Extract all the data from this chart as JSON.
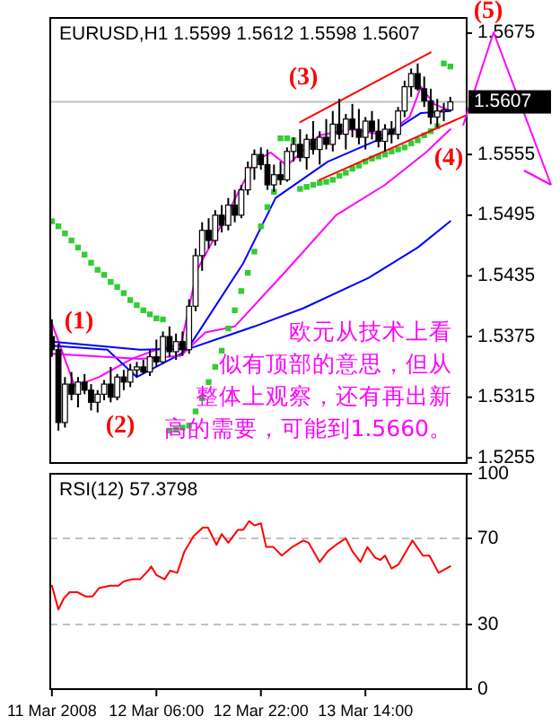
{
  "chart_data": [
    {
      "type": "candlestick",
      "title": "EURUSD,H1 1.5599 1.5612 1.5598 1.5607",
      "x": [
        "2008-03-11T14:00",
        "2008-03-11T15:00",
        "2008-03-11T16:00",
        "2008-03-11T17:00",
        "2008-03-11T18:00",
        "2008-03-11T19:00",
        "2008-03-11T20:00",
        "2008-03-11T21:00",
        "2008-03-11T22:00",
        "2008-03-11T23:00",
        "2008-03-12T00:00",
        "2008-03-12T01:00",
        "2008-03-12T02:00",
        "2008-03-12T03:00",
        "2008-03-12T04:00",
        "2008-03-12T05:00",
        "2008-03-12T06:00",
        "2008-03-12T07:00",
        "2008-03-12T08:00",
        "2008-03-12T09:00",
        "2008-03-12T10:00",
        "2008-03-12T11:00",
        "2008-03-12T12:00",
        "2008-03-12T13:00",
        "2008-03-12T14:00",
        "2008-03-12T15:00",
        "2008-03-12T16:00",
        "2008-03-12T17:00",
        "2008-03-12T18:00",
        "2008-03-12T19:00",
        "2008-03-12T20:00",
        "2008-03-12T21:00",
        "2008-03-12T22:00",
        "2008-03-12T23:00",
        "2008-03-13T00:00",
        "2008-03-13T01:00",
        "2008-03-13T02:00",
        "2008-03-13T03:00",
        "2008-03-13T04:00",
        "2008-03-13T05:00",
        "2008-03-13T06:00",
        "2008-03-13T07:00",
        "2008-03-13T08:00",
        "2008-03-13T09:00",
        "2008-03-13T10:00",
        "2008-03-13T11:00",
        "2008-03-13T12:00",
        "2008-03-13T13:00",
        "2008-03-13T14:00",
        "2008-03-13T15:00",
        "2008-03-13T16:00",
        "2008-03-13T17:00",
        "2008-03-13T18:00",
        "2008-03-13T19:00",
        "2008-03-13T20:00",
        "2008-03-13T21:00",
        "2008-03-13T22:00",
        "2008-03-13T23:00",
        "2008-03-14T00:00",
        "2008-03-14T01:00",
        "2008-03-14T02:00",
        "2008-03-14T03:00"
      ],
      "ohlc": [
        [
          1.5375,
          1.5392,
          1.5355,
          1.5362
        ],
        [
          1.5362,
          1.5368,
          1.5282,
          1.529
        ],
        [
          1.529,
          1.5335,
          1.5285,
          1.5328
        ],
        [
          1.5328,
          1.534,
          1.5312,
          1.5318
        ],
        [
          1.5318,
          1.5335,
          1.5305,
          1.533
        ],
        [
          1.533,
          1.5338,
          1.5318,
          1.5322
        ],
        [
          1.5322,
          1.5328,
          1.5302,
          1.531
        ],
        [
          1.531,
          1.5322,
          1.53,
          1.5318
        ],
        [
          1.5318,
          1.5332,
          1.5312,
          1.5328
        ],
        [
          1.5328,
          1.5345,
          1.531,
          1.5315
        ],
        [
          1.5315,
          1.5338,
          1.5312,
          1.5335
        ],
        [
          1.5335,
          1.5342,
          1.5322,
          1.533
        ],
        [
          1.533,
          1.5348,
          1.5325,
          1.5342
        ],
        [
          1.5342,
          1.535,
          1.5335,
          1.5345
        ],
        [
          1.5345,
          1.5352,
          1.5338,
          1.534
        ],
        [
          1.534,
          1.5362,
          1.5336,
          1.5355
        ],
        [
          1.5355,
          1.5372,
          1.5345,
          1.535
        ],
        [
          1.535,
          1.538,
          1.5348,
          1.5375
        ],
        [
          1.5375,
          1.5385,
          1.5355,
          1.536
        ],
        [
          1.536,
          1.5378,
          1.5352,
          1.537
        ],
        [
          1.537,
          1.538,
          1.5356,
          1.5362
        ],
        [
          1.5362,
          1.5412,
          1.5358,
          1.5405
        ],
        [
          1.5405,
          1.5462,
          1.54,
          1.5455
        ],
        [
          1.5455,
          1.5488,
          1.544,
          1.548
        ],
        [
          1.548,
          1.5492,
          1.5462,
          1.547
        ],
        [
          1.547,
          1.55,
          1.5465,
          1.5495
        ],
        [
          1.5495,
          1.5505,
          1.5478,
          1.5485
        ],
        [
          1.5485,
          1.5512,
          1.548,
          1.5505
        ],
        [
          1.5505,
          1.552,
          1.5488,
          1.5495
        ],
        [
          1.5495,
          1.5525,
          1.5492,
          1.552
        ],
        [
          1.552,
          1.5548,
          1.5515,
          1.5542
        ],
        [
          1.5542,
          1.556,
          1.553,
          1.5555
        ],
        [
          1.5555,
          1.5562,
          1.554,
          1.5545
        ],
        [
          1.5545,
          1.556,
          1.552,
          1.5525
        ],
        [
          1.5525,
          1.5545,
          1.5518,
          1.5535
        ],
        [
          1.5535,
          1.5548,
          1.5525,
          1.553
        ],
        [
          1.553,
          1.5562,
          1.5528,
          1.5558
        ],
        [
          1.5558,
          1.5572,
          1.5548,
          1.5565
        ],
        [
          1.5565,
          1.558,
          1.5548,
          1.5552
        ],
        [
          1.5552,
          1.5575,
          1.554,
          1.557
        ],
        [
          1.557,
          1.5588,
          1.5555,
          1.556
        ],
        [
          1.556,
          1.5578,
          1.5545,
          1.5572
        ],
        [
          1.5572,
          1.559,
          1.556,
          1.5565
        ],
        [
          1.5565,
          1.5598,
          1.5558,
          1.5585
        ],
        [
          1.5585,
          1.561,
          1.557,
          1.5575
        ],
        [
          1.5575,
          1.5595,
          1.556,
          1.559
        ],
        [
          1.559,
          1.5605,
          1.5572,
          1.558
        ],
        [
          1.558,
          1.56,
          1.5565,
          1.5572
        ],
        [
          1.5572,
          1.5592,
          1.556,
          1.5588
        ],
        [
          1.5588,
          1.5598,
          1.557,
          1.5578
        ],
        [
          1.5578,
          1.559,
          1.5562,
          1.5568
        ],
        [
          1.5568,
          1.5585,
          1.5558,
          1.558
        ],
        [
          1.558,
          1.5588,
          1.5566,
          1.5575
        ],
        [
          1.5575,
          1.5602,
          1.557,
          1.5598
        ],
        [
          1.5598,
          1.5628,
          1.5592,
          1.5622
        ],
        [
          1.5622,
          1.564,
          1.5612,
          1.5635
        ],
        [
          1.5635,
          1.5645,
          1.5618,
          1.562
        ],
        [
          1.562,
          1.5632,
          1.5602,
          1.5608
        ],
        [
          1.5608,
          1.562,
          1.5585,
          1.5592
        ],
        [
          1.5592,
          1.561,
          1.5582,
          1.5598
        ],
        [
          1.5598,
          1.5606,
          1.5588,
          1.5599
        ],
        [
          1.5599,
          1.5612,
          1.5598,
          1.5607
        ]
      ],
      "series": [
        {
          "type": "line",
          "color": "#ff00ff",
          "x": [
            "2008-03-11T14:00",
            "2008-03-11T17:30",
            "2008-03-11T21:15",
            "2008-03-12T02:15",
            "2008-03-12T06:00",
            "2008-03-12T09:45",
            "2008-03-12T12:15",
            "2008-03-12T16:00",
            "2008-03-12T21:00",
            "2008-03-12T23:30",
            "2008-03-13T02:00",
            "2008-03-13T07:00",
            "2008-03-13T12:00",
            "2008-03-13T17:00",
            "2008-03-13T20:45",
            "2008-03-13T22:30",
            "2008-03-14T00:30",
            "2008-03-14T03:00"
          ],
          "values": [
            1.5388,
            1.5326,
            1.5335,
            1.5353,
            1.5362,
            1.5367,
            1.5441,
            1.5486,
            1.5548,
            1.5557,
            1.5544,
            1.5574,
            1.558,
            1.5574,
            1.5592,
            1.5622,
            1.5605,
            1.5598
          ]
        },
        {
          "type": "line",
          "color": "#0000ff",
          "x": [
            "2008-03-11T14:00",
            "2008-03-11T22:30",
            "2008-03-12T03:00",
            "2008-03-12T09:45",
            "2008-03-12T11:00",
            "2008-03-12T19:15",
            "2008-03-13T00:15",
            "2008-03-13T08:15",
            "2008-03-13T16:30",
            "2008-03-13T22:30",
            "2008-03-14T03:00"
          ],
          "values": [
            1.5366,
            1.5362,
            1.5335,
            1.5358,
            1.5365,
            1.5447,
            1.5512,
            1.5548,
            1.5571,
            1.5596,
            1.5598
          ]
        },
        {
          "type": "line",
          "color": "#ff00ff",
          "x": [
            "2008-03-11T14:00",
            "2008-03-12T03:30",
            "2008-03-12T09:45",
            "2008-03-12T13:30",
            "2008-03-12T18:00",
            "2008-03-13T02:00",
            "2008-03-13T09:30",
            "2008-03-13T17:00",
            "2008-03-13T23:15",
            "2008-03-14T03:00"
          ],
          "values": [
            1.5358,
            1.5353,
            1.5356,
            1.5379,
            1.5385,
            1.5441,
            1.5495,
            1.5525,
            1.5557,
            1.558
          ]
        },
        {
          "type": "line",
          "color": "#0000ff",
          "x": [
            "2008-03-11T14:00",
            "2008-03-12T03:30",
            "2008-03-12T11:00",
            "2008-03-12T21:00",
            "2008-03-13T04:30",
            "2008-03-13T14:30",
            "2008-03-13T22:00",
            "2008-03-14T03:00"
          ],
          "values": [
            1.537,
            1.5362,
            1.5363,
            1.5385,
            1.5403,
            1.5433,
            1.5463,
            1.5489
          ]
        },
        {
          "type": "scatter",
          "color": "#33cc33",
          "marker": "square",
          "values": [
            1.5489,
            1.5484,
            1.5477,
            1.547,
            1.5463,
            1.5456,
            1.5448,
            1.5441,
            1.5436,
            1.5429,
            1.5424,
            1.5418,
            1.5411,
            1.5406,
            1.5401,
            1.5397,
            1.5393,
            1.5392,
            1.5282,
            1.5283,
            1.5285,
            1.5287,
            1.5301,
            1.5314,
            1.533,
            1.5345,
            1.5361,
            1.5383,
            1.5401,
            1.542,
            1.5438,
            1.5459,
            1.5484,
            1.5503,
            1.5518,
            1.5571,
            1.5571,
            1.5569,
            1.5521,
            1.5523,
            1.5525,
            1.5527,
            1.5528,
            1.553,
            1.5534,
            1.5537,
            1.5541,
            1.5544,
            1.5548,
            1.5551,
            1.5553,
            1.5555,
            1.5558,
            1.556,
            1.5562,
            1.5566,
            1.5569,
            1.5574,
            1.5578,
            1.5583,
            1.5645,
            1.5642
          ]
        },
        {
          "type": "line",
          "color": "#ff0000",
          "x": [
            "2008-03-13T04:00",
            "2008-03-14T00:00"
          ],
          "values": [
            1.5587,
            1.5656
          ]
        },
        {
          "type": "line",
          "color": "#ff0000",
          "x": [
            "2008-03-13T07:00",
            "2008-03-14T05:30"
          ],
          "values": [
            1.553,
            1.5594
          ]
        }
      ],
      "xlim": [
        "2008-03-11T13:45",
        "2008-03-14T05:30"
      ],
      "ylim": [
        1.525,
        1.569
      ],
      "yticks": [
        1.5255,
        1.5315,
        1.5375,
        1.5435,
        1.5495,
        1.5555,
        1.5675
      ],
      "tick_labels": "y",
      "ref_lines": [
        {
          "axis": "y",
          "value": 1.5607,
          "label": "1.5607",
          "color": "#c0c0c0"
        }
      ],
      "annotations": [
        "(1)",
        "(2)",
        "(3)",
        "(4)",
        "(5)",
        "欧元从技术上看似有顶部的意思，但从整体上观察，还有再出新高的需要，可能到1.5660。"
      ]
    },
    {
      "type": "line",
      "title": "RSI(12) 57.3798",
      "series": [
        {
          "color": "#ff0000",
          "x": [
            "2008-03-11T14:00",
            "2008-03-11T15:00",
            "2008-03-11T15:48",
            "2008-03-11T16:42",
            "2008-03-11T17:54",
            "2008-03-11T19:12",
            "2008-03-11T20:12",
            "2008-03-11T21:15",
            "2008-03-11T22:54",
            "2008-03-12T00:12",
            "2008-03-12T01:00",
            "2008-03-12T02:15",
            "2008-03-12T03:30",
            "2008-03-12T04:45",
            "2008-03-12T05:12",
            "2008-03-12T06:00",
            "2008-03-12T07:15",
            "2008-03-12T08:06",
            "2008-03-12T09:12",
            "2008-03-12T10:18",
            "2008-03-12T11:42",
            "2008-03-12T13:06",
            "2008-03-12T13:54",
            "2008-03-12T15:12",
            "2008-03-12T16:00",
            "2008-03-12T17:00",
            "2008-03-12T18:30",
            "2008-03-12T19:18",
            "2008-03-12T20:12",
            "2008-03-12T21:00",
            "2008-03-12T22:00",
            "2008-03-12T22:48",
            "2008-03-12T23:54",
            "2008-03-13T01:12",
            "2008-03-13T02:48",
            "2008-03-13T04:30",
            "2008-03-13T05:18",
            "2008-03-13T07:00",
            "2008-03-13T08:15",
            "2008-03-13T09:30",
            "2008-03-13T11:00",
            "2008-03-13T12:00",
            "2008-03-13T13:15",
            "2008-03-13T14:18",
            "2008-03-13T15:30",
            "2008-03-13T16:18",
            "2008-03-13T17:00",
            "2008-03-13T18:00",
            "2008-03-13T19:06",
            "2008-03-13T21:12",
            "2008-03-13T22:48",
            "2008-03-13T23:48",
            "2008-03-14T01:12",
            "2008-03-14T03:00"
          ],
          "values": [
            48,
            37,
            42,
            45,
            45,
            43,
            43,
            47,
            48,
            48,
            50,
            51,
            51,
            55,
            57,
            53,
            51,
            55,
            54,
            64,
            71,
            75,
            75,
            67,
            72,
            68,
            74,
            74,
            78,
            76,
            77,
            66,
            66,
            62,
            66,
            69,
            68,
            59,
            64,
            67,
            70,
            64,
            59,
            66,
            61,
            60,
            62,
            56,
            58,
            69,
            62,
            62,
            54,
            57
          ]
        }
      ],
      "xlim": [
        "2008-03-11T13:45",
        "2008-03-14T05:30"
      ],
      "ylim": [
        0,
        100
      ],
      "yticks": [
        0,
        30,
        70,
        100
      ],
      "xticks": [
        {
          "value": "2008-03-11T14:00",
          "label": "11 Mar 2008"
        },
        {
          "value": "2008-03-12T06:00",
          "label": "12 Mar 06:00"
        },
        {
          "value": "2008-03-12T22:00",
          "label": "12 Mar 22:00"
        },
        {
          "value": "2008-03-13T14:00",
          "label": "13 Mar 14:00"
        }
      ],
      "ref_lines": [
        {
          "axis": "y",
          "value": 70,
          "color": "#c0c0c0",
          "line_style": "dashed"
        },
        {
          "axis": "y",
          "value": 30,
          "color": "#c0c0c0",
          "line_style": "dashed"
        }
      ]
    }
  ]
}
